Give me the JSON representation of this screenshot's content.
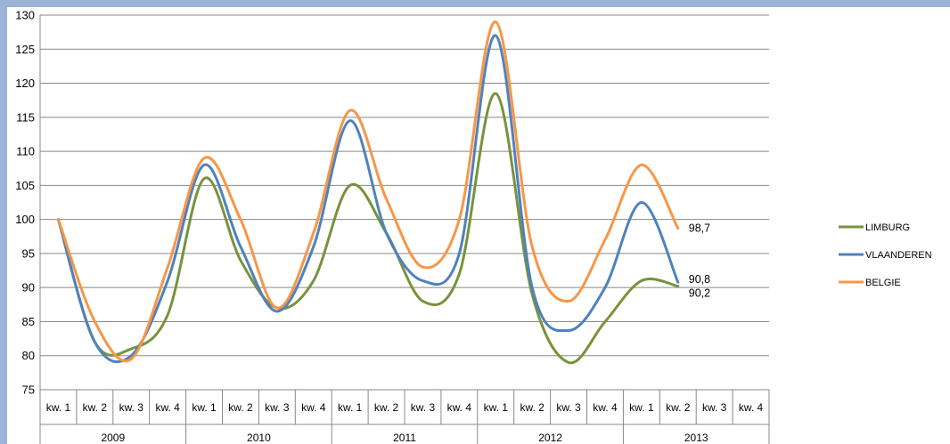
{
  "chart_data": {
    "type": "line",
    "title": "",
    "xlabel": "",
    "ylabel": "",
    "ylim": [
      75,
      130
    ],
    "y_ticks": [
      75,
      80,
      85,
      90,
      95,
      100,
      105,
      110,
      115,
      120,
      125,
      130
    ],
    "grid": true,
    "legend_position": "right",
    "quarters": [
      "kw. 1",
      "kw. 2",
      "kw. 3",
      "kw. 4",
      "kw. 1",
      "kw. 2",
      "kw. 3",
      "kw. 4",
      "kw. 1",
      "kw. 2",
      "kw. 3",
      "kw. 4",
      "kw. 1",
      "kw. 2",
      "kw. 3",
      "kw. 4",
      "kw. 1",
      "kw. 2",
      "kw. 3",
      "kw. 4"
    ],
    "years": [
      "2009",
      "2010",
      "2011",
      "2012",
      "2013"
    ],
    "series": [
      {
        "name": "LIMBURG",
        "color": "#77933c",
        "values": [
          100,
          82,
          81,
          86,
          106,
          94,
          87,
          91,
          105,
          98,
          88,
          92,
          118.5,
          89,
          79,
          85,
          91,
          90.2,
          null,
          null
        ],
        "end_label": "90,2"
      },
      {
        "name": "VLAANDEREN",
        "color": "#4f81bd",
        "values": [
          100,
          82,
          80,
          91,
          108,
          96,
          86.5,
          96,
          114.5,
          98,
          91,
          95,
          127,
          90,
          83.7,
          90,
          102.5,
          90.8,
          null,
          null
        ],
        "end_label": "90,8"
      },
      {
        "name": "BELGIE",
        "color": "#f79646",
        "values": [
          100,
          85,
          79.5,
          93,
          109,
          100,
          87,
          98,
          116,
          103,
          93,
          100,
          129,
          96,
          88,
          97,
          108,
          98.7,
          null,
          null
        ],
        "end_label": "98,7"
      }
    ]
  }
}
